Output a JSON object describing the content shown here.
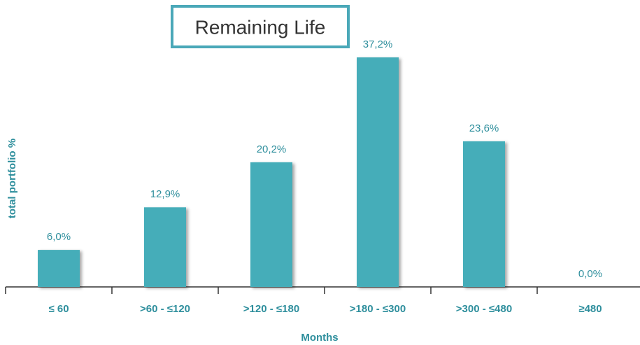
{
  "chart_data": {
    "type": "bar",
    "title": "Remaining Life",
    "x_label": "Months",
    "y_label": "total portfolio %",
    "categories": [
      "≤ 60",
      ">60 - ≤120",
      ">120 - ≤180",
      ">180 - ≤300",
      ">300 - ≤480",
      "≥480"
    ],
    "values": [
      6.0,
      12.9,
      20.2,
      37.2,
      23.6,
      0.0
    ],
    "value_labels": [
      "6,0%",
      "12,9%",
      "20,2%",
      "37,2%",
      "23,6%",
      "0,0%"
    ],
    "color": "#45adb9"
  }
}
